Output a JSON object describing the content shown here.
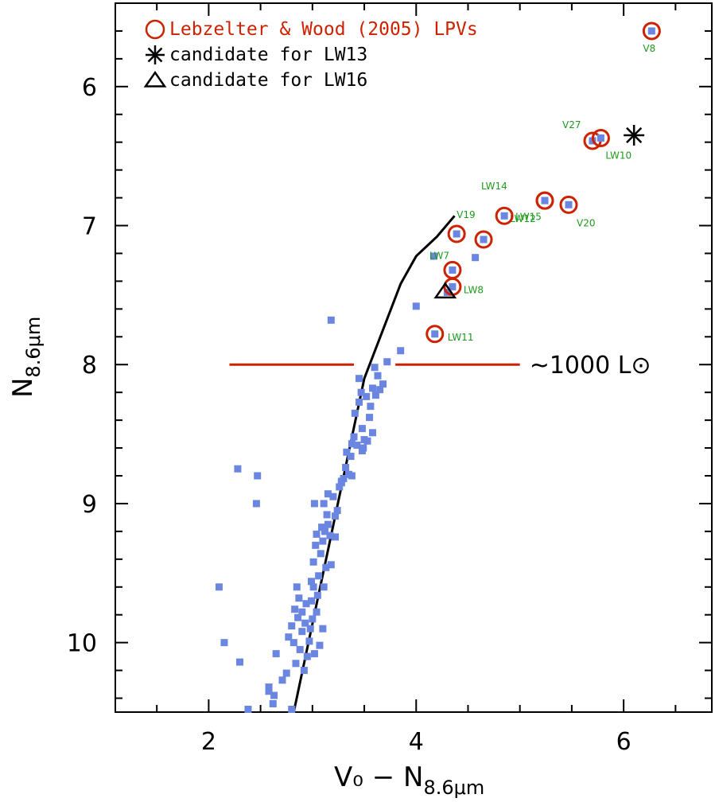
{
  "chart_data": {
    "type": "scatter",
    "xlabel": "V₀ − N",
    "xlabel_sub": "8.6μm",
    "ylabel": "N",
    "ylabel_sub": "8.6μm",
    "xlim": [
      1.1,
      6.85
    ],
    "ylim": [
      10.5,
      5.4
    ],
    "y_inverted": true,
    "x_ticks": [
      2,
      4,
      6
    ],
    "y_ticks": [
      6,
      7,
      8,
      9,
      10
    ],
    "x_minor_step": 0.5,
    "y_minor_step": 0.2,
    "grid": false,
    "legend_position": "top-left",
    "legend": [
      {
        "symbol": "circle",
        "label": "Lebzelter & Wood (2005) LPVs",
        "color": "#cc2200"
      },
      {
        "symbol": "asterisk",
        "label": "candidate for LW13",
        "color": "#000000"
      },
      {
        "symbol": "triangle",
        "label": "candidate for LW16",
        "color": "#000000"
      }
    ],
    "annotation": {
      "text": "~1000 L⊙",
      "y": 8.0,
      "segments": [
        [
          2.2,
          3.4
        ],
        [
          3.8,
          5.0
        ]
      ],
      "color": "#cc2200"
    },
    "colors": {
      "points": "#6a86e0",
      "circles": "#cc2200",
      "labels": "#1e9a1e",
      "line": "#000000"
    },
    "series": [
      {
        "type": "scatter",
        "points": [
          [
            2.1,
            9.6
          ],
          [
            2.15,
            10.0
          ],
          [
            2.28,
            8.75
          ],
          [
            2.3,
            10.14
          ],
          [
            2.38,
            10.48
          ],
          [
            2.47,
            8.8
          ],
          [
            2.46,
            9.0
          ],
          [
            2.58,
            10.35
          ],
          [
            2.58,
            10.32
          ],
          [
            2.62,
            10.44
          ],
          [
            2.63,
            10.38
          ],
          [
            2.65,
            10.08
          ],
          [
            2.71,
            10.27
          ],
          [
            2.75,
            10.22
          ],
          [
            2.77,
            9.96
          ],
          [
            2.8,
            9.88
          ],
          [
            2.82,
            10.0
          ],
          [
            2.83,
            9.76
          ],
          [
            2.84,
            10.15
          ],
          [
            2.85,
            9.6
          ],
          [
            2.86,
            9.82
          ],
          [
            2.87,
            9.68
          ],
          [
            2.88,
            10.05
          ],
          [
            2.9,
            9.92
          ],
          [
            2.9,
            9.78
          ],
          [
            2.92,
            10.2
          ],
          [
            2.93,
            9.86
          ],
          [
            2.94,
            9.72
          ],
          [
            2.95,
            10.1
          ],
          [
            2.97,
            9.99
          ],
          [
            2.98,
            9.9
          ],
          [
            2.99,
            9.56
          ],
          [
            2.99,
            9.7
          ],
          [
            3.0,
            9.83
          ],
          [
            3.01,
            9.6
          ],
          [
            3.01,
            9.42
          ],
          [
            3.02,
            10.08
          ],
          [
            3.02,
            9.0
          ],
          [
            3.03,
            9.3
          ],
          [
            3.04,
            9.78
          ],
          [
            3.04,
            9.22
          ],
          [
            3.05,
            9.66
          ],
          [
            3.06,
            9.52
          ],
          [
            3.07,
            10.02
          ],
          [
            3.08,
            9.36
          ],
          [
            3.09,
            9.17
          ],
          [
            3.1,
            9.9
          ],
          [
            3.1,
            9.27
          ],
          [
            3.11,
            9.0
          ],
          [
            3.11,
            9.6
          ],
          [
            3.12,
            9.2
          ],
          [
            3.13,
            9.46
          ],
          [
            3.14,
            9.08
          ],
          [
            3.15,
            9.15
          ],
          [
            3.15,
            8.93
          ],
          [
            3.17,
            9.23
          ],
          [
            3.18,
            9.44
          ],
          [
            3.2,
            8.95
          ],
          [
            3.22,
            9.09
          ],
          [
            3.22,
            9.24
          ],
          [
            3.24,
            9.05
          ],
          [
            3.26,
            8.88
          ],
          [
            3.28,
            8.85
          ],
          [
            3.28,
            8.84
          ],
          [
            3.3,
            8.82
          ],
          [
            3.32,
            8.74
          ],
          [
            3.33,
            8.63
          ],
          [
            3.35,
            8.79
          ],
          [
            3.37,
            8.66
          ],
          [
            3.38,
            8.8
          ],
          [
            3.38,
            8.57
          ],
          [
            3.4,
            8.52
          ],
          [
            3.41,
            8.35
          ],
          [
            3.43,
            8.58
          ],
          [
            3.45,
            8.27
          ],
          [
            3.45,
            8.1
          ],
          [
            3.47,
            8.2
          ],
          [
            3.48,
            8.46
          ],
          [
            3.48,
            8.62
          ],
          [
            3.49,
            8.6
          ],
          [
            3.5,
            8.54
          ],
          [
            3.52,
            8.23
          ],
          [
            3.53,
            8.55
          ],
          [
            3.55,
            8.38
          ],
          [
            3.56,
            8.3
          ],
          [
            3.58,
            8.17
          ],
          [
            3.58,
            8.49
          ],
          [
            3.6,
            8.02
          ],
          [
            3.61,
            8.22
          ],
          [
            3.63,
            8.08
          ],
          [
            3.65,
            8.18
          ],
          [
            3.68,
            8.14
          ],
          [
            3.72,
            7.98
          ],
          [
            3.85,
            7.9
          ],
          [
            4.0,
            7.58
          ],
          [
            4.17,
            7.22
          ],
          [
            4.3,
            7.48
          ],
          [
            4.57,
            7.23
          ],
          [
            3.18,
            7.68
          ],
          [
            2.8,
            10.48
          ]
        ]
      },
      {
        "type": "scatter",
        "name": "Lebzelter & Wood (2005) LPVs",
        "points": [
          {
            "label": "V8",
            "x": 6.27,
            "y": 5.6
          },
          {
            "label": "V27",
            "x": 5.7,
            "y": 6.39
          },
          {
            "label": "LW10",
            "x": 5.78,
            "y": 6.37
          },
          {
            "label": "LW14",
            "x": 5.24,
            "y": 6.82
          },
          {
            "label": "LW12",
            "x": 5.24,
            "y": 6.82
          },
          {
            "label": "V20",
            "x": 5.47,
            "y": 6.85
          },
          {
            "label": "V19",
            "x": 4.39,
            "y": 7.06
          },
          {
            "label": "LW15",
            "x": 4.85,
            "y": 6.93
          },
          {
            "label": "",
            "x": 4.65,
            "y": 7.1
          },
          {
            "label": "LW7",
            "x": 4.35,
            "y": 7.32
          },
          {
            "label": "LW8",
            "x": 4.35,
            "y": 7.44
          },
          {
            "label": "LW11",
            "x": 4.18,
            "y": 7.78
          }
        ]
      },
      {
        "type": "scatter",
        "name": "candidate for LW13",
        "points": [
          [
            6.1,
            6.35
          ]
        ]
      },
      {
        "type": "scatter",
        "name": "candidate for LW16",
        "points": [
          [
            4.28,
            7.48
          ]
        ]
      },
      {
        "type": "line",
        "points": [
          [
            2.82,
            10.5
          ],
          [
            3.5,
            8.1
          ],
          [
            3.85,
            7.42
          ],
          [
            4.0,
            7.22
          ],
          [
            4.2,
            7.08
          ],
          [
            4.37,
            6.93
          ]
        ]
      }
    ]
  }
}
